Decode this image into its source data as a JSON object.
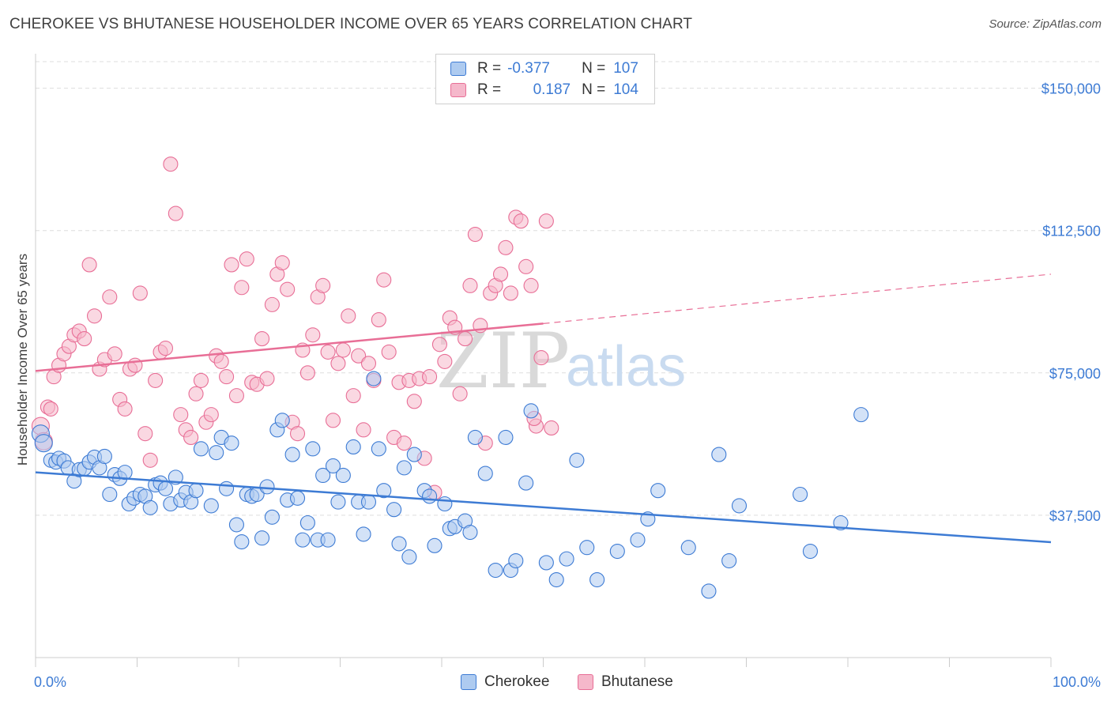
{
  "title": "CHEROKEE VS BHUTANESE HOUSEHOLDER INCOME OVER 65 YEARS CORRELATION CHART",
  "source": "Source: ZipAtlas.com",
  "watermark": {
    "zip": "ZIP",
    "atlas": "atlas"
  },
  "legend": {
    "rows": [
      {
        "r_label": "R =",
        "r_value": "-0.377",
        "n_label": "N =",
        "n_value": "107"
      },
      {
        "r_label": "R =",
        "r_value": "0.187",
        "n_label": "N =",
        "n_value": "104"
      }
    ]
  },
  "colors": {
    "cherokee": "#3d7bd4",
    "cherokee_fill": "#aecbf0",
    "bhutanese": "#e86e96",
    "bhutanese_fill": "#f5b8cb",
    "axis_text": "#3d7bd4",
    "grid": "#dddddd"
  },
  "chart_data": {
    "type": "scatter",
    "title": "CHEROKEE VS BHUTANESE HOUSEHOLDER INCOME OVER 65 YEARS CORRELATION CHART",
    "xlabel": "",
    "ylabel": "Householder Income Over 65 years",
    "xlim": [
      0,
      100
    ],
    "ylim": [
      0,
      157000
    ],
    "x_tick_labels": [
      "0.0%",
      "100.0%"
    ],
    "y_ticks": [
      37500,
      75000,
      112500,
      150000
    ],
    "y_tick_labels": [
      "$37,500",
      "$75,000",
      "$112,500",
      "$150,000"
    ],
    "grid": true,
    "legend_position": "bottom",
    "series": [
      {
        "name": "Cherokee",
        "r": -0.377,
        "n": 107,
        "trend": {
          "x0": 0,
          "y0": 48800,
          "x1": 100,
          "y1": 30400
        },
        "points": [
          [
            0.5,
            59000
          ],
          [
            0.8,
            56500
          ],
          [
            1.5,
            52000
          ],
          [
            2,
            51500
          ],
          [
            2.3,
            52500
          ],
          [
            2.8,
            51800
          ],
          [
            3.2,
            50000
          ],
          [
            3.8,
            46500
          ],
          [
            4.3,
            49500
          ],
          [
            4.8,
            49800
          ],
          [
            5.3,
            51500
          ],
          [
            5.8,
            52800
          ],
          [
            6.3,
            50000
          ],
          [
            6.8,
            53000
          ],
          [
            7.3,
            43000
          ],
          [
            7.8,
            48200
          ],
          [
            8.3,
            47200
          ],
          [
            8.8,
            48800
          ],
          [
            9.2,
            40500
          ],
          [
            9.7,
            42000
          ],
          [
            10.3,
            43000
          ],
          [
            10.8,
            42500
          ],
          [
            11.3,
            39500
          ],
          [
            11.8,
            45500
          ],
          [
            12.3,
            46000
          ],
          [
            12.8,
            44500
          ],
          [
            13.3,
            40500
          ],
          [
            13.8,
            47500
          ],
          [
            14.3,
            41500
          ],
          [
            14.8,
            43500
          ],
          [
            15.3,
            41000
          ],
          [
            15.8,
            44000
          ],
          [
            16.3,
            55000
          ],
          [
            17.3,
            40000
          ],
          [
            17.8,
            54000
          ],
          [
            18.3,
            58000
          ],
          [
            18.8,
            44500
          ],
          [
            19.3,
            56500
          ],
          [
            19.8,
            35000
          ],
          [
            20.3,
            30500
          ],
          [
            20.8,
            43000
          ],
          [
            21.3,
            42500
          ],
          [
            21.8,
            43000
          ],
          [
            22.3,
            31500
          ],
          [
            22.8,
            45000
          ],
          [
            23.3,
            37000
          ],
          [
            23.8,
            60000
          ],
          [
            24.3,
            62500
          ],
          [
            24.8,
            41500
          ],
          [
            25.3,
            53500
          ],
          [
            25.8,
            42000
          ],
          [
            26.3,
            31000
          ],
          [
            26.8,
            35500
          ],
          [
            27.3,
            55000
          ],
          [
            27.8,
            31000
          ],
          [
            28.3,
            48000
          ],
          [
            28.8,
            31000
          ],
          [
            29.3,
            50500
          ],
          [
            29.8,
            41000
          ],
          [
            30.3,
            48000
          ],
          [
            31.3,
            55500
          ],
          [
            31.8,
            41000
          ],
          [
            32.3,
            32500
          ],
          [
            32.8,
            41000
          ],
          [
            33.3,
            73500
          ],
          [
            33.8,
            55000
          ],
          [
            34.3,
            44000
          ],
          [
            35.3,
            39000
          ],
          [
            35.8,
            30000
          ],
          [
            36.3,
            50000
          ],
          [
            36.8,
            26500
          ],
          [
            37.3,
            53500
          ],
          [
            38.3,
            44000
          ],
          [
            38.8,
            42500
          ],
          [
            39.3,
            29500
          ],
          [
            40.3,
            40500
          ],
          [
            40.8,
            34000
          ],
          [
            41.3,
            34500
          ],
          [
            42.3,
            36000
          ],
          [
            42.8,
            33000
          ],
          [
            43.3,
            58000
          ],
          [
            44.3,
            48500
          ],
          [
            45.3,
            23000
          ],
          [
            46.3,
            58000
          ],
          [
            46.8,
            23000
          ],
          [
            47.3,
            25500
          ],
          [
            48.3,
            46000
          ],
          [
            48.8,
            65000
          ],
          [
            50.3,
            25000
          ],
          [
            51.3,
            20500
          ],
          [
            52.3,
            26000
          ],
          [
            53.3,
            52000
          ],
          [
            54.3,
            29000
          ],
          [
            55.3,
            20500
          ],
          [
            57.3,
            28000
          ],
          [
            59.3,
            31000
          ],
          [
            60.3,
            36500
          ],
          [
            61.3,
            44000
          ],
          [
            64.3,
            29000
          ],
          [
            66.3,
            17500
          ],
          [
            67.3,
            53500
          ],
          [
            68.3,
            25500
          ],
          [
            69.3,
            40000
          ],
          [
            75.3,
            43000
          ],
          [
            76.3,
            28000
          ],
          [
            79.3,
            35500
          ],
          [
            81.3,
            64000
          ]
        ]
      },
      {
        "name": "Bhutanese",
        "r": 0.187,
        "n": 104,
        "trend": {
          "x0": 0,
          "y0": 75500,
          "x1": 50,
          "y1": 88000,
          "x2": 100,
          "y2": 101000
        },
        "points": [
          [
            0.5,
            61000
          ],
          [
            0.8,
            57000
          ],
          [
            1.2,
            66000
          ],
          [
            1.5,
            65500
          ],
          [
            1.8,
            74000
          ],
          [
            2.3,
            77000
          ],
          [
            2.8,
            80000
          ],
          [
            3.3,
            82000
          ],
          [
            3.8,
            85000
          ],
          [
            4.3,
            86000
          ],
          [
            4.8,
            84000
          ],
          [
            5.3,
            103500
          ],
          [
            5.8,
            90000
          ],
          [
            6.3,
            76000
          ],
          [
            6.8,
            78500
          ],
          [
            7.3,
            95000
          ],
          [
            7.8,
            80000
          ],
          [
            8.3,
            68000
          ],
          [
            8.8,
            65500
          ],
          [
            9.3,
            76000
          ],
          [
            9.8,
            77000
          ],
          [
            10.3,
            96000
          ],
          [
            10.8,
            59000
          ],
          [
            11.3,
            52000
          ],
          [
            11.8,
            73000
          ],
          [
            12.3,
            80500
          ],
          [
            12.8,
            81500
          ],
          [
            13.3,
            130000
          ],
          [
            13.8,
            117000
          ],
          [
            14.3,
            64000
          ],
          [
            14.8,
            60000
          ],
          [
            15.3,
            58000
          ],
          [
            15.8,
            69500
          ],
          [
            16.3,
            73000
          ],
          [
            16.8,
            62000
          ],
          [
            17.3,
            64000
          ],
          [
            17.8,
            79500
          ],
          [
            18.3,
            78000
          ],
          [
            18.8,
            74000
          ],
          [
            19.3,
            103500
          ],
          [
            19.8,
            69000
          ],
          [
            20.3,
            97500
          ],
          [
            20.8,
            105000
          ],
          [
            21.3,
            72500
          ],
          [
            21.8,
            72000
          ],
          [
            22.3,
            84000
          ],
          [
            22.8,
            73500
          ],
          [
            23.3,
            93000
          ],
          [
            23.8,
            101000
          ],
          [
            24.3,
            104000
          ],
          [
            24.8,
            97000
          ],
          [
            25.3,
            62000
          ],
          [
            25.8,
            59000
          ],
          [
            26.3,
            81000
          ],
          [
            26.8,
            75000
          ],
          [
            27.3,
            85000
          ],
          [
            27.8,
            95000
          ],
          [
            28.3,
            98000
          ],
          [
            28.8,
            80500
          ],
          [
            29.3,
            62500
          ],
          [
            29.8,
            77500
          ],
          [
            30.3,
            81000
          ],
          [
            30.8,
            90000
          ],
          [
            31.3,
            69000
          ],
          [
            31.8,
            79500
          ],
          [
            32.3,
            60000
          ],
          [
            32.8,
            77500
          ],
          [
            33.3,
            73000
          ],
          [
            33.8,
            89000
          ],
          [
            34.3,
            99500
          ],
          [
            34.8,
            80500
          ],
          [
            35.3,
            58000
          ],
          [
            35.8,
            72500
          ],
          [
            36.3,
            56500
          ],
          [
            36.8,
            73000
          ],
          [
            37.3,
            67500
          ],
          [
            37.8,
            73500
          ],
          [
            38.3,
            52500
          ],
          [
            38.8,
            74000
          ],
          [
            39.3,
            43500
          ],
          [
            39.8,
            82500
          ],
          [
            40.3,
            78000
          ],
          [
            40.8,
            89500
          ],
          [
            41.3,
            87000
          ],
          [
            41.8,
            69500
          ],
          [
            42.3,
            84000
          ],
          [
            42.8,
            98000
          ],
          [
            43.3,
            111500
          ],
          [
            43.8,
            87500
          ],
          [
            44.3,
            56500
          ],
          [
            44.8,
            96000
          ],
          [
            45.3,
            98000
          ],
          [
            45.8,
            101000
          ],
          [
            46.3,
            108000
          ],
          [
            46.8,
            96000
          ],
          [
            47.3,
            116000
          ],
          [
            47.8,
            115000
          ],
          [
            48.3,
            103000
          ],
          [
            48.8,
            98000
          ],
          [
            49.3,
            61000
          ],
          [
            49.8,
            79000
          ],
          [
            50.3,
            115000
          ],
          [
            50.8,
            60500
          ],
          [
            49.1,
            63000
          ]
        ]
      }
    ]
  },
  "bottom_legend": {
    "cherokee": "Cherokee",
    "bhutanese": "Bhutanese"
  },
  "axis": {
    "x_min_label": "0.0%",
    "x_max_label": "100.0%",
    "y_title": "Householder Income Over 65 years"
  }
}
